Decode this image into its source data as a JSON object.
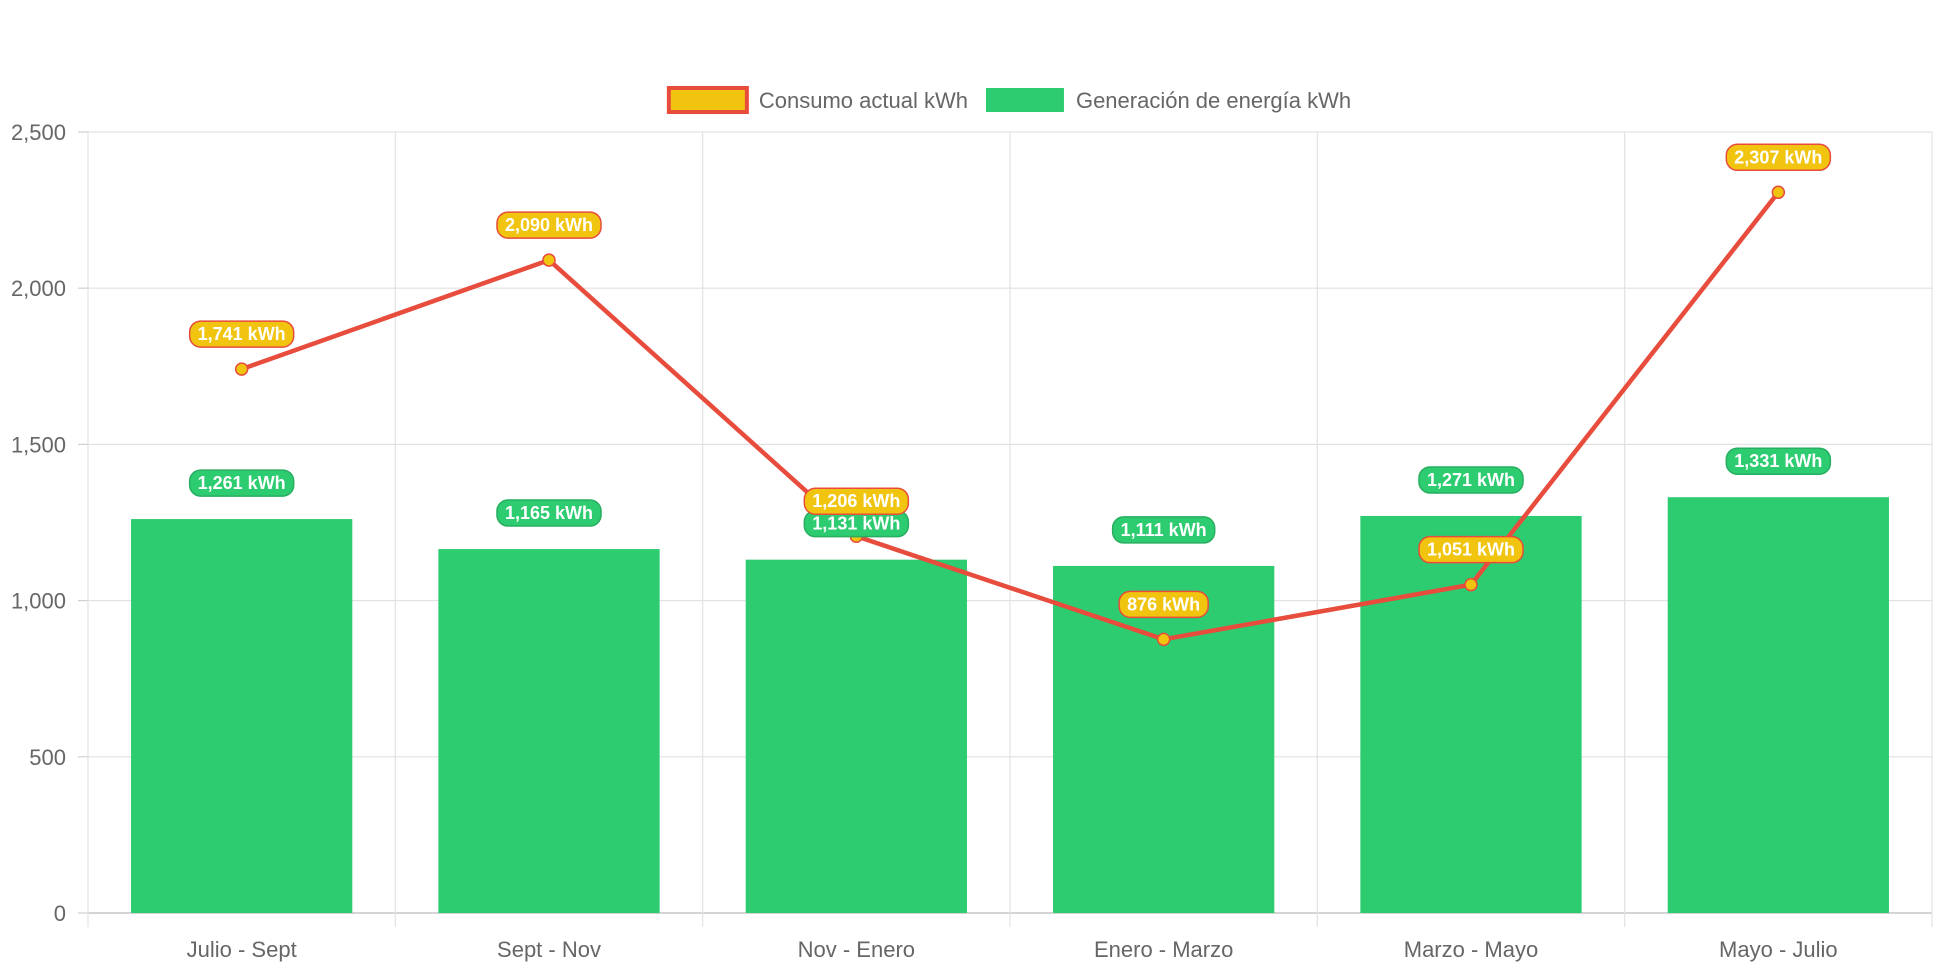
{
  "chart_data": {
    "type": "bar",
    "categories": [
      "Julio - Sept",
      "Sept - Nov",
      "Nov - Enero",
      "Enero - Marzo",
      "Marzo - Mayo",
      "Mayo - Julio"
    ],
    "ylim": [
      0,
      2500
    ],
    "yticks": [
      0,
      500,
      1000,
      1500,
      2000,
      2500
    ],
    "ytick_labels": [
      "0",
      "500",
      "1,000",
      "1,500",
      "2,000",
      "2,500"
    ],
    "grid": true,
    "legend_position": "top-center",
    "series": [
      {
        "name": "Consumo actual kWh",
        "type": "line",
        "color": "#e74c3c",
        "point_color": "#f1c40f",
        "values": [
          1741,
          2090,
          1206,
          876,
          1051,
          2307
        ],
        "labels": [
          "1,741 kWh",
          "2,090 kWh",
          "1,206 kWh",
          "876 kWh",
          "1,051 kWh",
          "2,307 kWh"
        ]
      },
      {
        "name": "Generación de energía kWh",
        "type": "bar",
        "color": "#2ecc71",
        "values": [
          1261,
          1165,
          1131,
          1111,
          1271,
          1331
        ],
        "labels": [
          "1,261 kWh",
          "1,165 kWh",
          "1,131 kWh",
          "1,111 kWh",
          "1,271 kWh",
          "1,331 kWh"
        ]
      }
    ]
  }
}
